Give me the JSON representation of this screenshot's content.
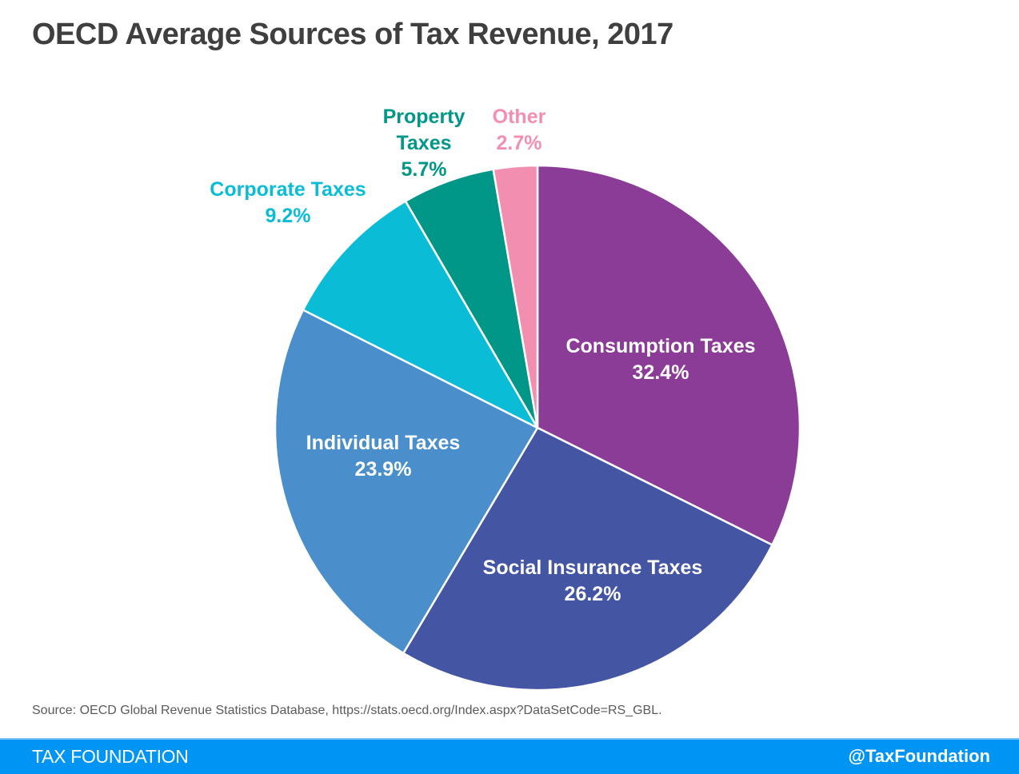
{
  "chart_data": {
    "type": "pie",
    "title": "OECD Average Sources of Tax Revenue, 2017",
    "start_angle": "12 o'clock",
    "direction": "clockwise",
    "slices": [
      {
        "label": "Consumption Taxes",
        "value": 32.4,
        "value_label": "32.4%",
        "color": "#8b3c96",
        "label_color": "#ffffff",
        "label_position": "inside"
      },
      {
        "label": "Social Insurance Taxes",
        "value": 26.2,
        "value_label": "26.2%",
        "color": "#4455a3",
        "label_color": "#ffffff",
        "label_position": "inside"
      },
      {
        "label": "Individual Taxes",
        "value": 23.9,
        "value_label": "23.9%",
        "color": "#4a8fcb",
        "label_color": "#ffffff",
        "label_position": "inside"
      },
      {
        "label": "Corporate Taxes",
        "value": 9.2,
        "value_label": "9.2%",
        "color": "#0bbcd6",
        "label_color": "#0bbcd6",
        "label_position": "outside"
      },
      {
        "label": "Property Taxes",
        "label_lines": [
          "Property",
          "Taxes"
        ],
        "value": 5.7,
        "value_label": "5.7%",
        "color": "#009688",
        "label_color": "#009688",
        "label_position": "outside"
      },
      {
        "label": "Other",
        "value": 2.7,
        "value_label": "2.7%",
        "color": "#f28fb1",
        "label_color": "#f28fb1",
        "label_position": "outside"
      }
    ]
  },
  "source": "Source: OECD Global Revenue Statistics Database, https://stats.oecd.org/Index.aspx?DataSetCode=RS_GBL.",
  "footer": {
    "brand": "TAX FOUNDATION",
    "handle": "@TaxFoundation",
    "color": "#0094f5"
  }
}
